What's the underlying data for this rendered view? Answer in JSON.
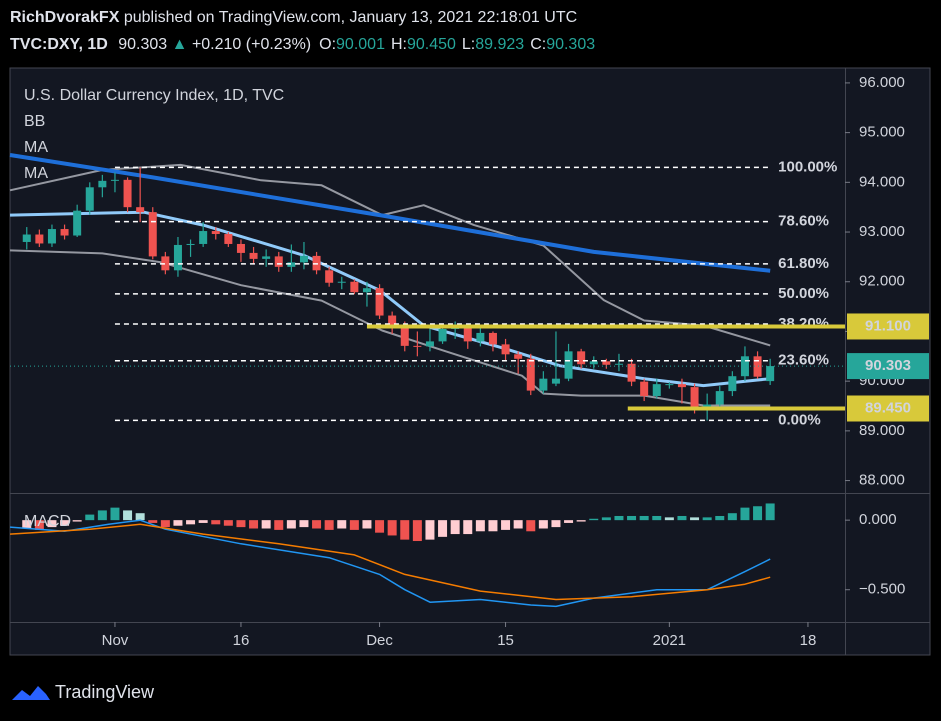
{
  "header": {
    "publisher": "RichDvorakFX",
    "published_text": "published on TradingView.com, January 13, 2021 22:18:01 UTC",
    "symbol": "TVC:DXY, 1D",
    "price": "90.303",
    "arrow": "▲",
    "change": "+0.210 (+0.23%)",
    "ohlc": [
      {
        "key": "O:",
        "value": "90.001"
      },
      {
        "key": "H:",
        "value": "90.450"
      },
      {
        "key": "L:",
        "value": "89.923"
      },
      {
        "key": "C:",
        "value": "90.303"
      }
    ]
  },
  "footer": {
    "brand": "TradingView"
  },
  "chart_data": [
    {
      "type": "candlestick",
      "legend": [
        "U.S. Dollar Currency Index, 1D, TVC",
        "BB",
        "MA",
        "MA"
      ],
      "up_color": "#26a69a",
      "down_color": "#ef5350",
      "xlim": [
        -1.33,
        64.94
      ],
      "xticks": [
        {
          "value": 7,
          "label": "Nov"
        },
        {
          "value": 17,
          "label": "16"
        },
        {
          "value": 28,
          "label": "Dec"
        },
        {
          "value": 38,
          "label": "15"
        },
        {
          "value": 51,
          "label": "2021"
        },
        {
          "value": 62,
          "label": "18"
        }
      ],
      "ylim": [
        87.75,
        96.3
      ],
      "yticks": [
        {
          "value": 96,
          "label": "96.000"
        },
        {
          "value": 95,
          "label": "95.000"
        },
        {
          "value": 94,
          "label": "94.000"
        },
        {
          "value": 93,
          "label": "93.000"
        },
        {
          "value": 92,
          "label": "92.000"
        },
        {
          "value": 91,
          "label": "91.000"
        },
        {
          "value": 90,
          "label": "90.000"
        },
        {
          "value": 89,
          "label": "89.000"
        },
        {
          "value": 88,
          "label": "88.000"
        }
      ],
      "open": [
        92.8,
        92.95,
        92.77,
        93.06,
        92.93,
        93.43,
        93.9,
        94.03,
        94.05,
        93.5,
        93.4,
        92.51,
        92.23,
        92.74,
        92.76,
        93.02,
        92.96,
        92.76,
        92.58,
        92.46,
        92.51,
        92.3,
        92.39,
        92.52,
        92.23,
        91.98,
        92.0,
        91.79,
        91.87,
        91.32,
        91.12,
        90.71,
        90.7,
        90.8,
        91.05,
        91.1,
        90.8,
        90.97,
        90.74,
        90.54,
        90.45,
        89.81,
        89.95,
        90.05,
        90.6,
        90.34,
        90.4,
        90.33,
        90.35,
        89.99,
        89.7,
        89.93,
        89.94,
        89.88,
        89.43,
        89.53,
        89.8,
        90.1,
        90.5,
        90.001
      ],
      "high": [
        93.1,
        93.05,
        93.15,
        93.15,
        93.55,
        94.0,
        94.15,
        94.2,
        94.1,
        94.3,
        93.5,
        92.6,
        92.9,
        92.85,
        93.2,
        93.1,
        93.0,
        92.85,
        92.7,
        92.65,
        92.6,
        92.75,
        92.8,
        92.6,
        92.3,
        92.1,
        92.05,
        92.0,
        91.95,
        91.4,
        91.2,
        91.0,
        91.05,
        91.15,
        91.2,
        91.15,
        91.1,
        91.0,
        90.85,
        90.6,
        90.55,
        90.2,
        91.0,
        90.75,
        90.65,
        90.5,
        90.45,
        90.55,
        90.45,
        90.05,
        90.05,
        89.98,
        90.05,
        89.95,
        89.75,
        89.9,
        90.2,
        90.7,
        90.6,
        90.45
      ],
      "low": [
        92.65,
        92.7,
        92.7,
        92.85,
        92.9,
        93.35,
        93.7,
        93.8,
        93.4,
        93.2,
        92.45,
        92.15,
        92.1,
        92.5,
        92.7,
        92.85,
        92.7,
        92.4,
        92.35,
        92.3,
        92.2,
        92.2,
        92.25,
        92.15,
        91.9,
        91.85,
        91.75,
        91.5,
        91.25,
        90.95,
        90.6,
        90.5,
        90.6,
        90.75,
        90.85,
        90.65,
        90.7,
        90.6,
        90.4,
        90.15,
        89.72,
        89.75,
        89.9,
        90.0,
        90.25,
        90.25,
        90.25,
        90.2,
        89.9,
        89.6,
        89.65,
        89.85,
        89.55,
        89.35,
        89.21,
        89.45,
        89.7,
        90.0,
        90.05,
        89.923
      ],
      "close": [
        92.95,
        92.77,
        93.06,
        92.93,
        93.43,
        93.9,
        94.03,
        94.05,
        93.5,
        93.4,
        92.51,
        92.23,
        92.74,
        92.76,
        93.02,
        92.96,
        92.76,
        92.58,
        92.46,
        92.51,
        92.3,
        92.39,
        92.52,
        92.23,
        91.98,
        92.0,
        91.79,
        91.87,
        91.32,
        91.12,
        90.71,
        90.7,
        90.8,
        91.05,
        91.1,
        90.8,
        90.97,
        90.74,
        90.54,
        90.45,
        89.81,
        90.05,
        90.05,
        90.6,
        90.34,
        90.4,
        90.33,
        90.35,
        89.99,
        89.7,
        89.94,
        89.94,
        89.88,
        89.43,
        89.53,
        89.8,
        90.1,
        90.5,
        90.09,
        90.303
      ],
      "overlays": [
        {
          "color": "#9598a1",
          "width": 2,
          "x": [
            -1.33,
            6,
            12.2,
            18.6,
            23.4,
            28.2,
            31.5,
            35.5,
            41,
            45.8,
            49,
            53.7,
            59
          ],
          "values": [
            93.84,
            94.25,
            94.35,
            94.04,
            93.94,
            93.34,
            93.54,
            93.14,
            92.73,
            91.63,
            91.22,
            91.12,
            90.72
          ]
        },
        {
          "color": "#9598a1",
          "width": 2,
          "x": [
            -1.33,
            6,
            10.7,
            17,
            23.4,
            28.2,
            33,
            39.3,
            41,
            44,
            49,
            53.7,
            59
          ],
          "values": [
            92.63,
            92.57,
            92.39,
            91.93,
            91.62,
            91.02,
            90.62,
            90.11,
            89.75,
            89.71,
            89.71,
            89.51,
            89.51
          ]
        },
        {
          "color": "#90caf9",
          "width": 3,
          "x": [
            -1.33,
            9.3,
            14,
            22,
            28,
            31.5,
            37.9,
            42.3,
            49,
            53.7,
            59
          ],
          "values": [
            93.34,
            93.4,
            93.14,
            92.53,
            91.83,
            91.12,
            90.66,
            90.31,
            90.05,
            89.91,
            90.05
          ]
        },
        {
          "color": "#1e6fd9",
          "width": 4,
          "x": [
            -1.33,
            10,
            28,
            45,
            59
          ],
          "values": [
            94.55,
            94.1,
            93.34,
            92.6,
            92.22
          ]
        }
      ],
      "fib_x": [
        7,
        59
      ],
      "fib_levels": [
        {
          "value": 94.3,
          "label": "100.00%"
        },
        {
          "value": 93.21,
          "label": "78.60%"
        },
        {
          "value": 92.36,
          "label": "61.80%"
        },
        {
          "value": 91.755,
          "label": "50.00%"
        },
        {
          "value": 91.15,
          "label": "38.20%"
        },
        {
          "value": 90.41,
          "label": "23.60%"
        },
        {
          "value": 89.21,
          "label": "0.00%"
        }
      ],
      "levels_color": "#d8c93a",
      "levels": [
        {
          "value": 91.1,
          "label": "91.100",
          "from": 27
        },
        {
          "value": 89.45,
          "label": "89.450",
          "from": 47.7
        }
      ],
      "last": {
        "value": 90.303,
        "label": "90.303",
        "color": "#26a69a"
      }
    },
    {
      "type": "macd",
      "label": "MACD",
      "xlim": [
        -1.33,
        64.94
      ],
      "ylim": [
        -0.732,
        0.188
      ],
      "yticks": [
        {
          "value": 0,
          "label": "0.000"
        },
        {
          "value": -0.5,
          "label": "−0.500"
        }
      ],
      "colors": {
        "pos_up": "#26a69a",
        "pos_down": "#b2dfdb",
        "neg_down": "#ef5350",
        "neg_up": "#ffcdd2"
      },
      "histogram": [
        -0.06,
        -0.07,
        -0.05,
        -0.04,
        -0.01,
        0.04,
        0.07,
        0.09,
        0.07,
        0.05,
        -0.02,
        -0.05,
        -0.04,
        -0.03,
        -0.02,
        -0.03,
        -0.04,
        -0.05,
        -0.06,
        -0.06,
        -0.07,
        -0.06,
        -0.05,
        -0.06,
        -0.07,
        -0.06,
        -0.07,
        -0.06,
        -0.09,
        -0.11,
        -0.14,
        -0.15,
        -0.14,
        -0.12,
        -0.1,
        -0.1,
        -0.08,
        -0.08,
        -0.07,
        -0.06,
        -0.08,
        -0.06,
        -0.05,
        -0.02,
        -0.01,
        0.01,
        0.02,
        0.03,
        0.03,
        0.03,
        0.03,
        0.02,
        0.03,
        0.02,
        0.02,
        0.03,
        0.05,
        0.09,
        0.1,
        0.12
      ],
      "macd": {
        "color": "#2196f3",
        "x": [
          -1.33,
          3,
          6.5,
          9,
          11,
          17,
          24,
          28,
          30,
          32,
          36,
          40,
          42,
          45,
          50,
          54,
          57,
          59
        ],
        "values": [
          -0.05,
          -0.08,
          -0.03,
          0.0,
          -0.065,
          -0.17,
          -0.27,
          -0.39,
          -0.5,
          -0.59,
          -0.57,
          -0.61,
          -0.62,
          -0.56,
          -0.5,
          -0.5,
          -0.37,
          -0.28
        ]
      },
      "signal": {
        "color": "#f57c00",
        "x": [
          -1.33,
          5,
          9,
          14,
          20,
          26,
          30,
          36,
          42,
          48,
          54,
          57,
          59
        ],
        "values": [
          -0.1,
          -0.065,
          -0.03,
          -0.1,
          -0.17,
          -0.25,
          -0.39,
          -0.51,
          -0.57,
          -0.55,
          -0.5,
          -0.46,
          -0.41
        ]
      }
    }
  ]
}
